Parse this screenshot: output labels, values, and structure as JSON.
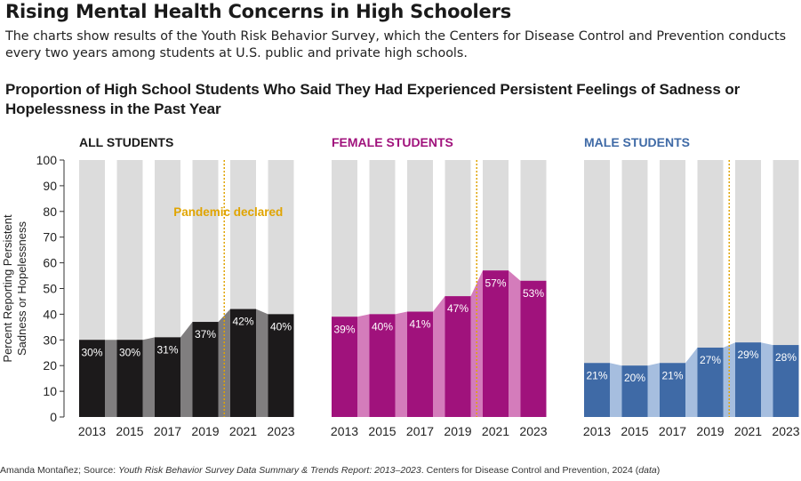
{
  "title": "Rising Mental Health Concerns in High Schoolers",
  "subtitle": "The charts show results of the Youth Risk Behavior Survey, which the Centers for Disease Control and Prevention conducts every two years among students at U.S. public and private high schools.",
  "chart_title": "Proportion of High School Students Who Said They Had Experienced Persistent Feelings of Sadness or Hopelessness in the Past Year",
  "footer": {
    "credit": "Amanda Montañez; Source: ",
    "source_title": "Youth Risk Behavior Survey Data Summary & Trends Report: 2013–2023",
    "publisher": ". Centers for Disease Control and Prevention, 2024 (",
    "data_link": "data",
    "close": ")"
  },
  "chart_data": [
    {
      "type": "bar",
      "title": "ALL STUDENTS",
      "categories": [
        "2013",
        "2015",
        "2017",
        "2019",
        "2021",
        "2023"
      ],
      "values": [
        30,
        30,
        31,
        37,
        42,
        40
      ],
      "value_labels": [
        "30%",
        "30%",
        "31%",
        "37%",
        "42%",
        "40%"
      ],
      "ylabel": "Percent Reporting Persistent Sadness or Hopelessness",
      "ylim": [
        0,
        100
      ],
      "yticks": [
        "0",
        "10",
        "20",
        "30",
        "40",
        "50",
        "60",
        "70",
        "80",
        "90",
        "100"
      ],
      "annotation": "Pandemic declared",
      "colors": {
        "bar": "#1c1a1b",
        "band": "#807e7f",
        "background": "#dcdcdc",
        "label": "#ffffff"
      }
    },
    {
      "type": "bar",
      "title": "FEMALE STUDENTS",
      "categories": [
        "2013",
        "2015",
        "2017",
        "2019",
        "2021",
        "2023"
      ],
      "values": [
        39,
        40,
        41,
        47,
        57,
        53
      ],
      "value_labels": [
        "39%",
        "40%",
        "41%",
        "47%",
        "57%",
        "53%"
      ],
      "ylim": [
        0,
        100
      ],
      "colors": {
        "bar": "#a0127c",
        "band": "#d47cbb",
        "background": "#dcdcdc",
        "label": "#ffffff"
      }
    },
    {
      "type": "bar",
      "title": "MALE STUDENTS",
      "categories": [
        "2013",
        "2015",
        "2017",
        "2019",
        "2021",
        "2023"
      ],
      "values": [
        21,
        20,
        21,
        27,
        29,
        28
      ],
      "value_labels": [
        "21%",
        "20%",
        "21%",
        "27%",
        "29%",
        "28%"
      ],
      "ylim": [
        0,
        100
      ],
      "colors": {
        "bar": "#3f6aa6",
        "band": "#a6bedf",
        "background": "#dcdcdc",
        "label": "#ffffff"
      }
    }
  ],
  "colors": {
    "title_all": "#1a1a1a",
    "title_female": "#a0127c",
    "title_male": "#3f6aa6",
    "pandemic_line": "#e0a400"
  }
}
